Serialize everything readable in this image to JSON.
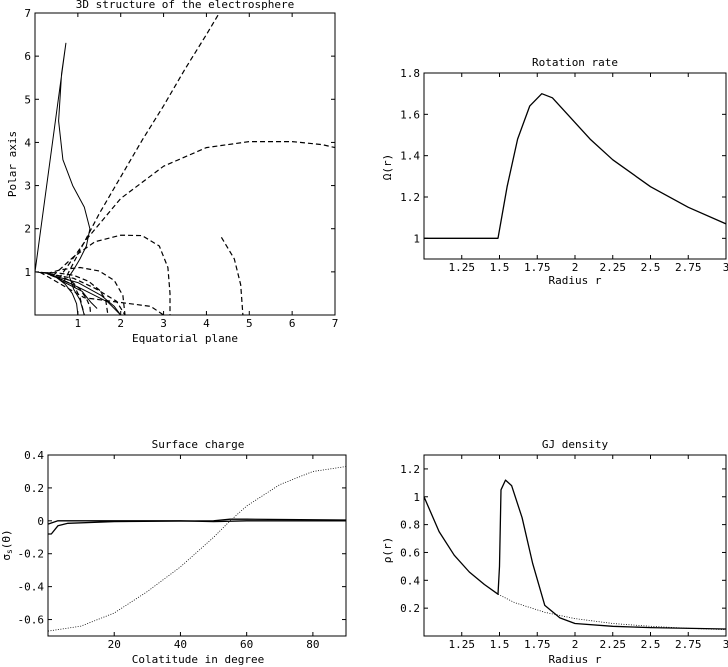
{
  "chart_data": [
    {
      "id": "p1",
      "type": "line",
      "title": "3D structure of the electrosphere",
      "xlabel": "Equatorial plane",
      "ylabel": "Polar axis",
      "xlim": [
        0,
        7
      ],
      "ylim": [
        0,
        7
      ],
      "xticks": [
        1,
        2,
        3,
        4,
        5,
        6,
        7
      ],
      "yticks": [
        1,
        2,
        3,
        4,
        5,
        6,
        7
      ],
      "series": [
        {
          "style": "solid",
          "points": [
            [
              0,
              1
            ],
            [
              0.26,
              0.97
            ],
            [
              0.5,
              0.87
            ],
            [
              0.71,
              0.71
            ],
            [
              0.87,
              0.5
            ],
            [
              0.97,
              0.26
            ],
            [
              1,
              0
            ]
          ]
        },
        {
          "style": "dashed",
          "points": [
            [
              0.14,
              0.99
            ],
            [
              0.35,
              0.96
            ],
            [
              0.6,
              0.9
            ],
            [
              0.85,
              0.78
            ],
            [
              1.05,
              0.6
            ],
            [
              1.2,
              0.38
            ],
            [
              1.28,
              0.2
            ],
            [
              1.3,
              0
            ]
          ]
        },
        {
          "style": "dashed",
          "points": [
            [
              0.2,
              0.98
            ],
            [
              0.5,
              0.98
            ],
            [
              0.9,
              0.92
            ],
            [
              1.25,
              0.78
            ],
            [
              1.5,
              0.58
            ],
            [
              1.65,
              0.35
            ],
            [
              1.7,
              0
            ]
          ]
        },
        {
          "style": "dashed",
          "points": [
            [
              0.28,
              0.96
            ],
            [
              0.6,
              1.05
            ],
            [
              1.05,
              1.1
            ],
            [
              1.5,
              1.02
            ],
            [
              1.85,
              0.8
            ],
            [
              2.05,
              0.45
            ],
            [
              2.1,
              0
            ]
          ]
        },
        {
          "style": "dashed",
          "points": [
            [
              0.42,
              0.91
            ],
            [
              0.9,
              1.35
            ],
            [
              1.4,
              1.7
            ],
            [
              2,
              1.85
            ],
            [
              2.5,
              1.84
            ],
            [
              2.9,
              1.6
            ],
            [
              3.1,
              1.1
            ],
            [
              3.15,
              0.5
            ],
            [
              3.15,
              0
            ]
          ]
        },
        {
          "style": "dashed",
          "points": [
            [
              0.55,
              0.84
            ],
            [
              1.2,
              1.75
            ],
            [
              2,
              2.7
            ],
            [
              3,
              3.45
            ],
            [
              4,
              3.88
            ],
            [
              5,
              4.02
            ],
            [
              6,
              4.02
            ],
            [
              6.7,
              3.95
            ],
            [
              7,
              3.88
            ]
          ]
        },
        {
          "style": "dashed",
          "points": [
            [
              0.66,
              0.75
            ],
            [
              1.05,
              1.5
            ],
            [
              1.5,
              2.35
            ],
            [
              2,
              3.2
            ],
            [
              2.5,
              4.05
            ],
            [
              3,
              4.85
            ],
            [
              3.5,
              5.7
            ],
            [
              4,
              6.5
            ],
            [
              4.3,
              7
            ]
          ]
        },
        {
          "style": "dashed",
          "points": [
            [
              0.3,
              0.95
            ],
            [
              0.9,
              0.85
            ],
            [
              1.4,
              0.62
            ],
            [
              1.9,
              0.32
            ],
            [
              2.1,
              0
            ]
          ]
        },
        {
          "style": "dashed",
          "points": [
            [
              0.35,
              0.93
            ],
            [
              0.9,
              0.7
            ],
            [
              1.05,
              0.4
            ],
            [
              1.15,
              0
            ]
          ]
        },
        {
          "style": "dashed",
          "points": [
            [
              0.12,
              0.99
            ],
            [
              1.15,
              0.4
            ],
            [
              2.7,
              0.2
            ],
            [
              3,
              0
            ]
          ]
        },
        {
          "style": "dashed",
          "points": [
            [
              4.35,
              1.8
            ],
            [
              4.65,
              1.3
            ],
            [
              4.8,
              0.7
            ],
            [
              4.85,
              0
            ]
          ]
        },
        {
          "style": "solid",
          "points": [
            [
              0,
              1
            ],
            [
              0.72,
              6.3
            ],
            [
              0.62,
              5.6
            ],
            [
              0.55,
              4.5
            ],
            [
              0.65,
              3.6
            ],
            [
              0.88,
              3
            ],
            [
              1.15,
              2.5
            ],
            [
              1.28,
              2
            ],
            [
              1.2,
              1.6
            ],
            [
              1.05,
              1.3
            ],
            [
              0.9,
              1.05
            ],
            [
              0.8,
              0.9
            ],
            [
              0.9,
              0.6
            ],
            [
              1.05,
              0.35
            ],
            [
              1.15,
              0
            ]
          ]
        },
        {
          "style": "solid",
          "points": [
            [
              0.5,
              0.88
            ],
            [
              1.1,
              0.6
            ],
            [
              1.7,
              0.3
            ],
            [
              2,
              0
            ]
          ]
        },
        {
          "style": "solid",
          "points": [
            [
              0.4,
              0.92
            ],
            [
              1,
              0.75
            ],
            [
              1.55,
              0.45
            ],
            [
              1.85,
              0.2
            ],
            [
              2,
              0
            ]
          ]
        },
        {
          "style": "solid",
          "points": [
            [
              0.6,
              0.8
            ],
            [
              1.1,
              0.55
            ],
            [
              1.3,
              0.3
            ],
            [
              1.45,
              0.15
            ]
          ]
        }
      ]
    },
    {
      "id": "p2",
      "type": "line",
      "title": "Rotation rate",
      "xlabel": "Radius r",
      "ylabel": "Ω(r)",
      "xlim": [
        1,
        3
      ],
      "ylim": [
        0.9,
        1.8
      ],
      "xticks": [
        1.25,
        1.5,
        1.75,
        2,
        2.25,
        2.5,
        2.75,
        3
      ],
      "xticklabels": [
        "1.25",
        "1.5",
        "1.75",
        "2",
        "2.25",
        "2.5",
        "2.75",
        "3"
      ],
      "yticks": [
        1,
        1.2,
        1.4,
        1.6,
        1.8
      ],
      "yticklabels": [
        "1",
        "1.2",
        "1.4",
        "1.6",
        "1.8"
      ],
      "series": [
        {
          "style": "solid",
          "points": [
            [
              1,
              1
            ],
            [
              1.49,
              1
            ],
            [
              1.55,
              1.25
            ],
            [
              1.62,
              1.48
            ],
            [
              1.7,
              1.64
            ],
            [
              1.78,
              1.7
            ],
            [
              1.85,
              1.68
            ],
            [
              1.95,
              1.6
            ],
            [
              2.1,
              1.48
            ],
            [
              2.25,
              1.38
            ],
            [
              2.5,
              1.25
            ],
            [
              2.75,
              1.15
            ],
            [
              3,
              1.07
            ]
          ]
        }
      ]
    },
    {
      "id": "p3",
      "type": "line",
      "title": "Surface charge",
      "xlabel": "Colatitude in degree",
      "ylabel": "σs(Θ)",
      "xlim": [
        0,
        90
      ],
      "ylim": [
        -0.7,
        0.4
      ],
      "xticks": [
        20,
        40,
        60,
        80
      ],
      "xticklabels": [
        "20",
        "40",
        "60",
        "80"
      ],
      "yticks": [
        -0.6,
        -0.4,
        -0.2,
        0,
        0.2,
        0.4
      ],
      "yticklabels": [
        "-0.6",
        "-0.4",
        "-0.2",
        "0",
        "0.2",
        "0.4"
      ],
      "series": [
        {
          "style": "dotted",
          "points": [
            [
              0,
              -0.67
            ],
            [
              10,
              -0.64
            ],
            [
              20,
              -0.56
            ],
            [
              30,
              -0.43
            ],
            [
              40,
              -0.28
            ],
            [
              50,
              -0.1
            ],
            [
              55,
              0
            ],
            [
              60,
              0.09
            ],
            [
              70,
              0.22
            ],
            [
              80,
              0.3
            ],
            [
              90,
              0.33
            ]
          ]
        },
        {
          "style": "solid",
          "points": [
            [
              0,
              -0.08
            ],
            [
              1,
              -0.08
            ],
            [
              3,
              -0.03
            ],
            [
              6,
              -0.015
            ],
            [
              20,
              -0.005
            ],
            [
              50,
              0
            ],
            [
              55,
              0.01
            ],
            [
              60,
              0.01
            ],
            [
              90,
              0.005
            ]
          ]
        },
        {
          "style": "solid",
          "points": [
            [
              0,
              -0.02
            ],
            [
              3,
              0
            ],
            [
              40,
              0
            ],
            [
              50,
              -0.005
            ],
            [
              60,
              0
            ],
            [
              90,
              0
            ]
          ]
        }
      ]
    },
    {
      "id": "p4",
      "type": "line",
      "title": "GJ density",
      "xlabel": "Radius r",
      "ylabel": "ρ(r)",
      "xlim": [
        1,
        3
      ],
      "ylim": [
        0,
        1.3
      ],
      "xticks": [
        1.25,
        1.5,
        1.75,
        2,
        2.25,
        2.5,
        2.75,
        3
      ],
      "xticklabels": [
        "1.25",
        "1.5",
        "1.75",
        "2",
        "2.25",
        "2.5",
        "2.75",
        "3"
      ],
      "yticks": [
        0.2,
        0.4,
        0.6,
        0.8,
        1,
        1.2
      ],
      "yticklabels": [
        "0.2",
        "0.4",
        "0.6",
        "0.8",
        "1",
        "1.2"
      ],
      "series": [
        {
          "style": "solid",
          "points": [
            [
              1,
              1
            ],
            [
              1.1,
              0.75
            ],
            [
              1.2,
              0.58
            ],
            [
              1.3,
              0.46
            ],
            [
              1.4,
              0.37
            ],
            [
              1.49,
              0.3
            ],
            [
              1.5,
              0.5
            ],
            [
              1.51,
              1.05
            ],
            [
              1.54,
              1.12
            ],
            [
              1.58,
              1.08
            ],
            [
              1.65,
              0.85
            ],
            [
              1.72,
              0.52
            ],
            [
              1.8,
              0.22
            ],
            [
              1.9,
              0.13
            ],
            [
              2,
              0.09
            ],
            [
              2.25,
              0.07
            ],
            [
              2.5,
              0.06
            ],
            [
              3,
              0.05
            ]
          ]
        },
        {
          "style": "dotted",
          "points": [
            [
              1.49,
              0.3
            ],
            [
              1.6,
              0.24
            ],
            [
              1.8,
              0.17
            ],
            [
              2,
              0.125
            ],
            [
              2.25,
              0.09
            ],
            [
              2.5,
              0.07
            ],
            [
              2.75,
              0.055
            ],
            [
              3,
              0.045
            ]
          ]
        }
      ]
    }
  ]
}
